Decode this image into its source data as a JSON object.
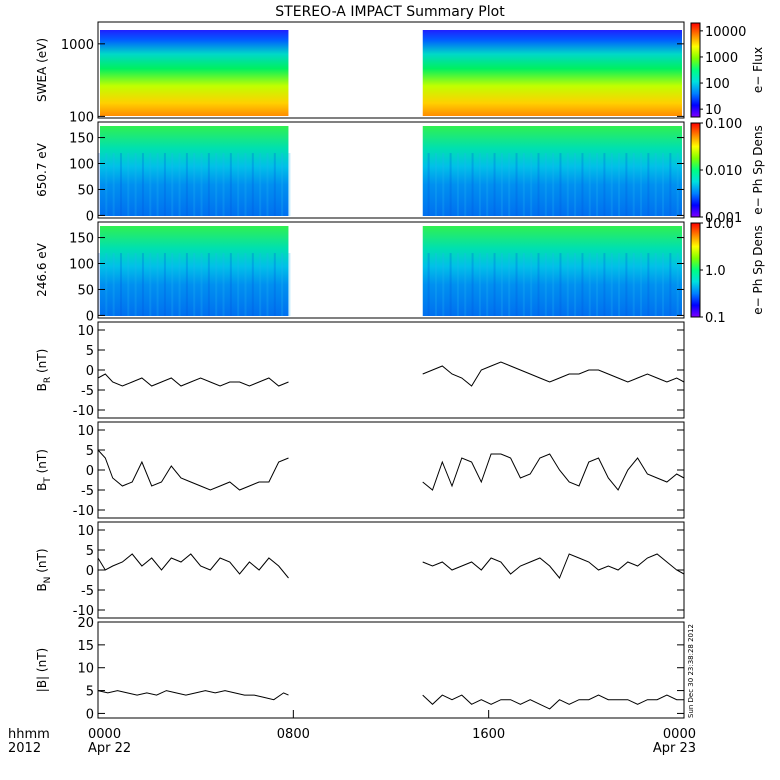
{
  "title": "STEREO-A IMPACT Summary Plot",
  "timestamp": "Sun Dec 30 23:38:28 2012",
  "x_axis": {
    "row_label": "hhmm",
    "year_label": "2012",
    "ticks": [
      "0000",
      "0800",
      "1600",
      "0000"
    ],
    "dates": [
      "Apr 22",
      "",
      "",
      "Apr 23"
    ],
    "range_hours": [
      0,
      24
    ]
  },
  "colors": {
    "rainbow": [
      "#7f00ff",
      "#0000ff",
      "#0080ff",
      "#00e0e0",
      "#00ff80",
      "#80ff00",
      "#ffff00",
      "#ff8000",
      "#ff0000"
    ],
    "line": "#000000",
    "background": "#ffffff"
  },
  "chart_data": [
    {
      "type": "heatmap",
      "ylabel": "SWEA (eV)",
      "yscale": "log",
      "ylim": [
        95,
        2000
      ],
      "yticks": [
        "100",
        "1000"
      ],
      "data_gap_hours": [
        7.8,
        13.3
      ],
      "colorbar": {
        "label": "e− Flux",
        "scale": "log",
        "range": [
          5,
          20000
        ],
        "ticks": [
          "10",
          "100",
          "1000",
          "10000"
        ]
      }
    },
    {
      "type": "heatmap",
      "ylabel": "650.7 eV",
      "ylim": [
        -5,
        180
      ],
      "yticks": [
        "0",
        "50",
        "100",
        "150"
      ],
      "data_gap_hours": [
        7.8,
        13.3
      ],
      "colorbar": {
        "label": "e− Ph Sp Dens",
        "scale": "log",
        "range": [
          0.001,
          0.1
        ],
        "ticks": [
          "0.001",
          "0.010",
          "0.100"
        ]
      }
    },
    {
      "type": "heatmap",
      "ylabel": "246.6 eV",
      "ylim": [
        -5,
        180
      ],
      "yticks": [
        "0",
        "50",
        "100",
        "150"
      ],
      "data_gap_hours": [
        7.8,
        13.3
      ],
      "colorbar": {
        "label": "e− Ph Sp Dens",
        "scale": "log",
        "range": [
          0.1,
          10
        ],
        "ticks": [
          "0.1",
          "1.0",
          "10.0"
        ]
      }
    },
    {
      "type": "line",
      "ylabel": "B",
      "ylabel_sub": "R",
      "ylabel_unit": "(nT)",
      "ylim": [
        -12,
        12
      ],
      "yticks": [
        "-10",
        "-5",
        "0",
        "5",
        "10"
      ],
      "segments": [
        {
          "x": [
            0,
            0.3,
            0.6,
            1.0,
            1.4,
            1.8,
            2.2,
            2.6,
            3.0,
            3.4,
            3.8,
            4.2,
            4.6,
            5.0,
            5.4,
            5.8,
            6.2,
            6.6,
            7.0,
            7.4,
            7.8
          ],
          "y": [
            -2,
            -1,
            -3,
            -4,
            -3,
            -2,
            -4,
            -3,
            -2,
            -4,
            -3,
            -2,
            -3,
            -4,
            -3,
            -3,
            -4,
            -3,
            -2,
            -4,
            -3
          ]
        },
        {
          "x": [
            13.3,
            13.7,
            14.1,
            14.5,
            14.9,
            15.3,
            15.7,
            16.1,
            16.5,
            16.9,
            17.3,
            17.7,
            18.1,
            18.5,
            18.9,
            19.3,
            19.7,
            20.1,
            20.5,
            20.9,
            21.3,
            21.7,
            22.1,
            22.5,
            22.9,
            23.3,
            23.7,
            24.0
          ],
          "y": [
            -1,
            0,
            1,
            -1,
            -2,
            -4,
            0,
            1,
            2,
            1,
            0,
            -1,
            -2,
            -3,
            -2,
            -1,
            -1,
            0,
            0,
            -1,
            -2,
            -3,
            -2,
            -1,
            -2,
            -3,
            -2,
            -3
          ]
        }
      ]
    },
    {
      "type": "line",
      "ylabel": "B",
      "ylabel_sub": "T",
      "ylabel_unit": "(nT)",
      "ylim": [
        -12,
        12
      ],
      "yticks": [
        "-10",
        "-5",
        "0",
        "5",
        "10"
      ],
      "segments": [
        {
          "x": [
            0,
            0.3,
            0.6,
            1.0,
            1.4,
            1.8,
            2.2,
            2.6,
            3.0,
            3.4,
            3.8,
            4.2,
            4.6,
            5.0,
            5.4,
            5.8,
            6.2,
            6.6,
            7.0,
            7.4,
            7.8
          ],
          "y": [
            5,
            3,
            -2,
            -4,
            -3,
            2,
            -4,
            -3,
            1,
            -2,
            -3,
            -4,
            -5,
            -4,
            -3,
            -5,
            -4,
            -3,
            -3,
            2,
            3
          ]
        },
        {
          "x": [
            13.3,
            13.7,
            14.1,
            14.5,
            14.9,
            15.3,
            15.7,
            16.1,
            16.5,
            16.9,
            17.3,
            17.7,
            18.1,
            18.5,
            18.9,
            19.3,
            19.7,
            20.1,
            20.5,
            20.9,
            21.3,
            21.7,
            22.1,
            22.5,
            22.9,
            23.3,
            23.7,
            24.0
          ],
          "y": [
            -3,
            -5,
            2,
            -4,
            3,
            2,
            -3,
            4,
            4,
            3,
            -2,
            -1,
            3,
            4,
            0,
            -3,
            -4,
            2,
            3,
            -2,
            -5,
            0,
            3,
            -1,
            -2,
            -3,
            -1,
            -2
          ]
        }
      ]
    },
    {
      "type": "line",
      "ylabel": "B",
      "ylabel_sub": "N",
      "ylabel_unit": "(nT)",
      "ylim": [
        -12,
        12
      ],
      "yticks": [
        "-10",
        "-5",
        "0",
        "5",
        "10"
      ],
      "segments": [
        {
          "x": [
            0,
            0.3,
            0.6,
            1.0,
            1.4,
            1.8,
            2.2,
            2.6,
            3.0,
            3.4,
            3.8,
            4.2,
            4.6,
            5.0,
            5.4,
            5.8,
            6.2,
            6.6,
            7.0,
            7.4,
            7.8
          ],
          "y": [
            3,
            0,
            1,
            2,
            4,
            1,
            3,
            0,
            3,
            2,
            4,
            1,
            0,
            3,
            2,
            -1,
            2,
            0,
            3,
            1,
            -2
          ]
        },
        {
          "x": [
            13.3,
            13.7,
            14.1,
            14.5,
            14.9,
            15.3,
            15.7,
            16.1,
            16.5,
            16.9,
            17.3,
            17.7,
            18.1,
            18.5,
            18.9,
            19.3,
            19.7,
            20.1,
            20.5,
            20.9,
            21.3,
            21.7,
            22.1,
            22.5,
            22.9,
            23.3,
            23.7,
            24.0
          ],
          "y": [
            2,
            1,
            2,
            0,
            1,
            2,
            0,
            3,
            2,
            -1,
            1,
            2,
            3,
            1,
            -2,
            4,
            3,
            2,
            0,
            1,
            0,
            2,
            1,
            3,
            4,
            2,
            0,
            -1
          ]
        }
      ]
    },
    {
      "type": "line",
      "ylabel": "|B| (nT)",
      "ylim": [
        -1,
        20
      ],
      "yticks": [
        "0",
        "5",
        "10",
        "15",
        "20"
      ],
      "segments": [
        {
          "x": [
            0,
            0.4,
            0.8,
            1.2,
            1.6,
            2.0,
            2.4,
            2.8,
            3.2,
            3.6,
            4.0,
            4.4,
            4.8,
            5.2,
            5.6,
            6.0,
            6.4,
            6.8,
            7.2,
            7.6,
            7.8
          ],
          "y": [
            5,
            4.5,
            5,
            4.5,
            4,
            4.5,
            4,
            5,
            4.5,
            4,
            4.5,
            5,
            4.5,
            5,
            4.5,
            4,
            4,
            3.5,
            3,
            4.5,
            4
          ]
        },
        {
          "x": [
            13.3,
            13.7,
            14.1,
            14.5,
            14.9,
            15.3,
            15.7,
            16.1,
            16.5,
            16.9,
            17.3,
            17.7,
            18.1,
            18.5,
            18.9,
            19.3,
            19.7,
            20.1,
            20.5,
            20.9,
            21.3,
            21.7,
            22.1,
            22.5,
            22.9,
            23.3,
            23.7,
            24.0
          ],
          "y": [
            4,
            2,
            4,
            3,
            4,
            2,
            3,
            2,
            3,
            3,
            2,
            3,
            2,
            1,
            3,
            2,
            3,
            3,
            4,
            3,
            3,
            3,
            2,
            3,
            3,
            4,
            3,
            3
          ]
        }
      ]
    }
  ]
}
